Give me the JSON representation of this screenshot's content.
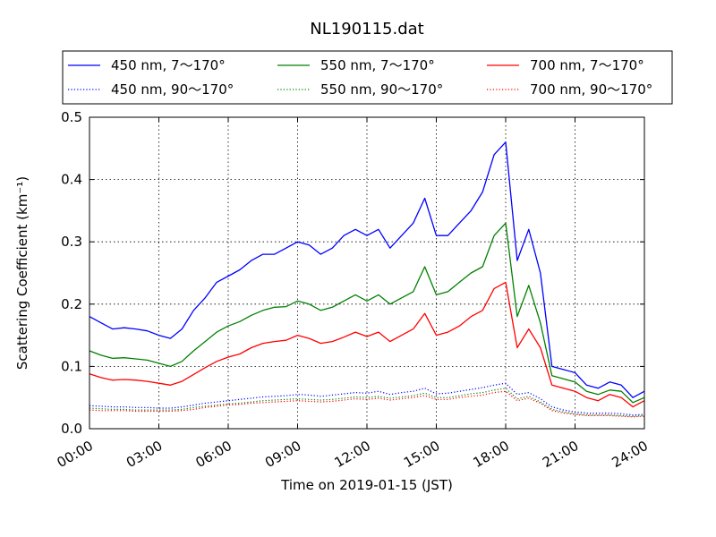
{
  "chart_data": {
    "type": "line",
    "title": "NL190115.dat",
    "xlabel": "Time on 2019-01-15 (JST)",
    "ylabel": "Scattering Coefficient (km⁻¹)",
    "xlim_hours": [
      0,
      24
    ],
    "ylim": [
      0,
      0.5
    ],
    "x_ticks": [
      "00:00",
      "03:00",
      "06:00",
      "09:00",
      "12:00",
      "15:00",
      "18:00",
      "21:00",
      "24:00"
    ],
    "y_ticks": [
      "0.0",
      "0.1",
      "0.2",
      "0.3",
      "0.4",
      "0.5"
    ],
    "grid": true,
    "legend_position": "top, above plot",
    "x_hours": [
      0,
      0.5,
      1,
      1.5,
      2,
      2.5,
      3,
      3.5,
      4,
      4.5,
      5,
      5.5,
      6,
      6.5,
      7,
      7.5,
      8,
      8.5,
      9,
      9.5,
      10,
      10.5,
      11,
      11.5,
      12,
      12.5,
      13,
      13.5,
      14,
      14.5,
      15,
      15.5,
      16,
      16.5,
      17,
      17.5,
      18,
      18.5,
      19,
      19.5,
      20,
      20.5,
      21,
      21.5,
      22,
      22.5,
      23,
      23.5,
      24
    ],
    "series": [
      {
        "name": "450 nm, 7～170°",
        "color": "#0000ff",
        "style": "solid",
        "values": [
          0.18,
          0.17,
          0.16,
          0.162,
          0.16,
          0.157,
          0.15,
          0.145,
          0.16,
          0.19,
          0.21,
          0.235,
          0.245,
          0.255,
          0.27,
          0.28,
          0.28,
          0.29,
          0.3,
          0.295,
          0.28,
          0.29,
          0.31,
          0.32,
          0.31,
          0.32,
          0.29,
          0.31,
          0.33,
          0.37,
          0.31,
          0.31,
          0.33,
          0.35,
          0.38,
          0.44,
          0.46,
          0.27,
          0.32,
          0.25,
          0.1,
          0.095,
          0.09,
          0.07,
          0.065,
          0.075,
          0.07,
          0.05,
          0.06
        ]
      },
      {
        "name": "550 nm, 7～170°",
        "color": "#008000",
        "style": "solid",
        "values": [
          0.125,
          0.118,
          0.113,
          0.114,
          0.112,
          0.11,
          0.105,
          0.1,
          0.108,
          0.125,
          0.14,
          0.155,
          0.165,
          0.172,
          0.182,
          0.19,
          0.195,
          0.196,
          0.205,
          0.2,
          0.19,
          0.195,
          0.205,
          0.215,
          0.205,
          0.215,
          0.2,
          0.21,
          0.22,
          0.26,
          0.215,
          0.22,
          0.235,
          0.25,
          0.26,
          0.31,
          0.33,
          0.18,
          0.23,
          0.17,
          0.085,
          0.08,
          0.075,
          0.06,
          0.055,
          0.062,
          0.06,
          0.042,
          0.05
        ]
      },
      {
        "name": "700 nm, 7～170°",
        "color": "#ff0000",
        "style": "solid",
        "values": [
          0.088,
          0.082,
          0.078,
          0.079,
          0.078,
          0.076,
          0.073,
          0.07,
          0.076,
          0.087,
          0.098,
          0.108,
          0.115,
          0.12,
          0.13,
          0.137,
          0.14,
          0.142,
          0.15,
          0.145,
          0.137,
          0.14,
          0.147,
          0.155,
          0.148,
          0.155,
          0.14,
          0.15,
          0.16,
          0.185,
          0.15,
          0.155,
          0.165,
          0.18,
          0.19,
          0.225,
          0.235,
          0.13,
          0.16,
          0.13,
          0.07,
          0.065,
          0.06,
          0.05,
          0.045,
          0.055,
          0.05,
          0.035,
          0.045
        ]
      },
      {
        "name": "450 nm, 90～170°",
        "color": "#0000ff",
        "style": "dotted",
        "values": [
          0.037,
          0.036,
          0.035,
          0.035,
          0.034,
          0.034,
          0.033,
          0.033,
          0.035,
          0.038,
          0.041,
          0.043,
          0.045,
          0.047,
          0.049,
          0.051,
          0.052,
          0.053,
          0.055,
          0.054,
          0.052,
          0.054,
          0.056,
          0.058,
          0.057,
          0.06,
          0.055,
          0.058,
          0.06,
          0.065,
          0.056,
          0.057,
          0.06,
          0.063,
          0.066,
          0.07,
          0.073,
          0.055,
          0.058,
          0.048,
          0.035,
          0.03,
          0.027,
          0.025,
          0.025,
          0.025,
          0.024,
          0.022,
          0.023
        ]
      },
      {
        "name": "550 nm, 90～170°",
        "color": "#008000",
        "style": "dotted",
        "values": [
          0.033,
          0.032,
          0.031,
          0.031,
          0.03,
          0.03,
          0.03,
          0.03,
          0.031,
          0.034,
          0.036,
          0.038,
          0.04,
          0.041,
          0.043,
          0.045,
          0.046,
          0.047,
          0.048,
          0.047,
          0.046,
          0.047,
          0.049,
          0.051,
          0.05,
          0.052,
          0.049,
          0.051,
          0.053,
          0.057,
          0.05,
          0.05,
          0.053,
          0.056,
          0.058,
          0.062,
          0.065,
          0.048,
          0.052,
          0.043,
          0.031,
          0.027,
          0.024,
          0.022,
          0.022,
          0.022,
          0.021,
          0.02,
          0.021
        ]
      },
      {
        "name": "700 nm, 90～170°",
        "color": "#ff0000",
        "style": "dotted",
        "values": [
          0.03,
          0.029,
          0.029,
          0.029,
          0.028,
          0.028,
          0.028,
          0.028,
          0.029,
          0.031,
          0.034,
          0.036,
          0.038,
          0.039,
          0.041,
          0.042,
          0.043,
          0.044,
          0.045,
          0.044,
          0.043,
          0.044,
          0.046,
          0.048,
          0.047,
          0.049,
          0.046,
          0.048,
          0.05,
          0.053,
          0.047,
          0.047,
          0.05,
          0.052,
          0.054,
          0.058,
          0.06,
          0.045,
          0.049,
          0.041,
          0.029,
          0.025,
          0.023,
          0.021,
          0.021,
          0.021,
          0.02,
          0.019,
          0.02
        ]
      }
    ]
  }
}
